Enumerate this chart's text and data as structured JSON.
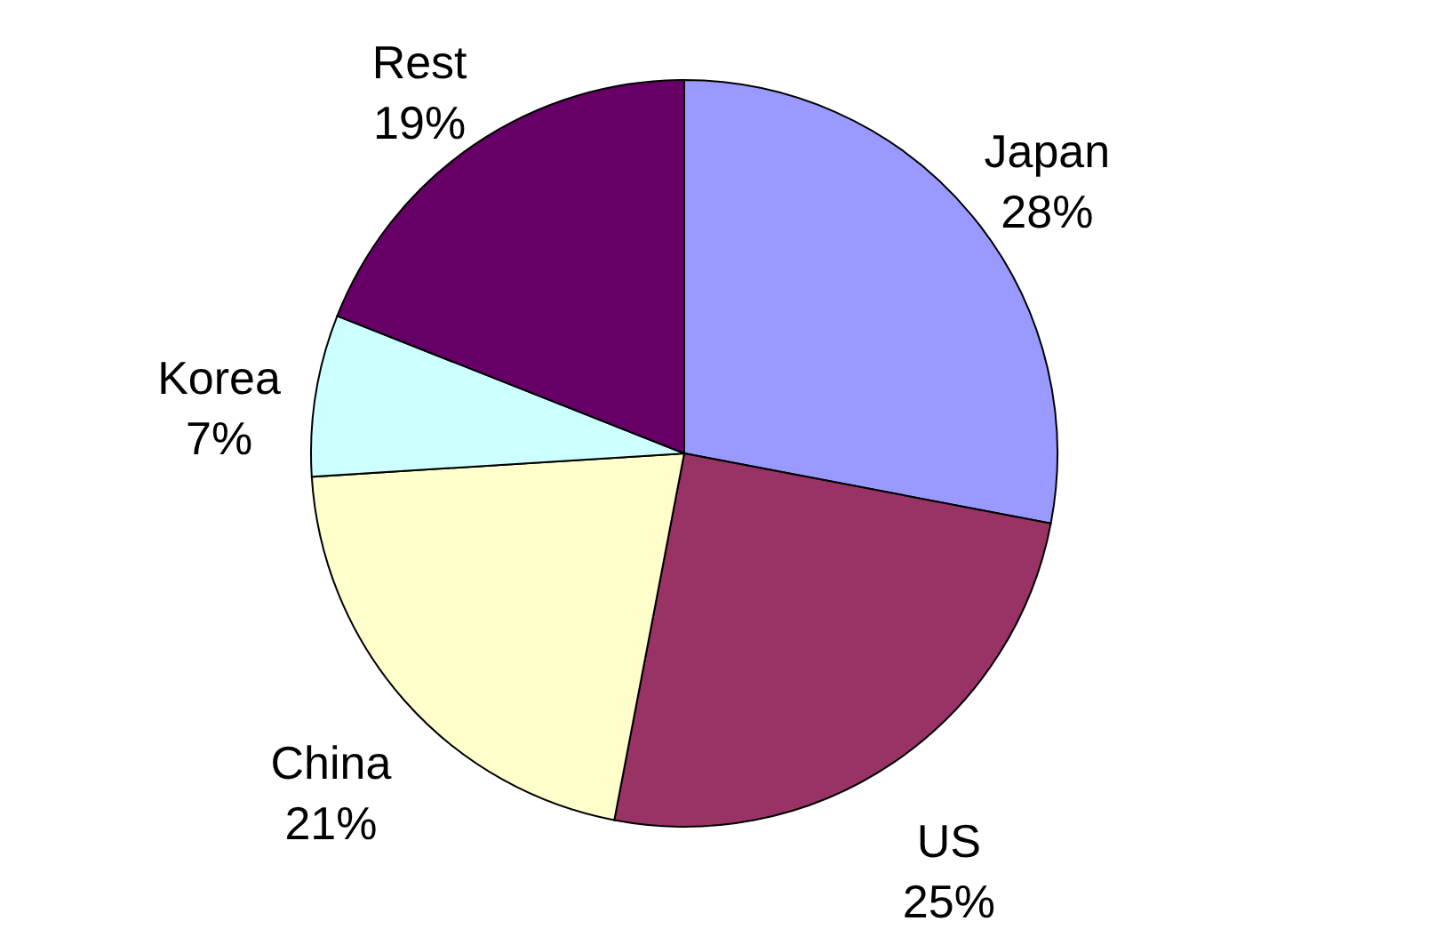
{
  "chart_data": {
    "type": "pie",
    "categories": [
      "Japan",
      "US",
      "China",
      "Korea",
      "Rest"
    ],
    "values": [
      28,
      25,
      21,
      7,
      19
    ],
    "value_labels": [
      "28%",
      "25%",
      "21%",
      "7%",
      "19%"
    ],
    "colors": [
      "#9999ff",
      "#993366",
      "#ffffcc",
      "#ccffff",
      "#660066"
    ],
    "legend": false
  }
}
